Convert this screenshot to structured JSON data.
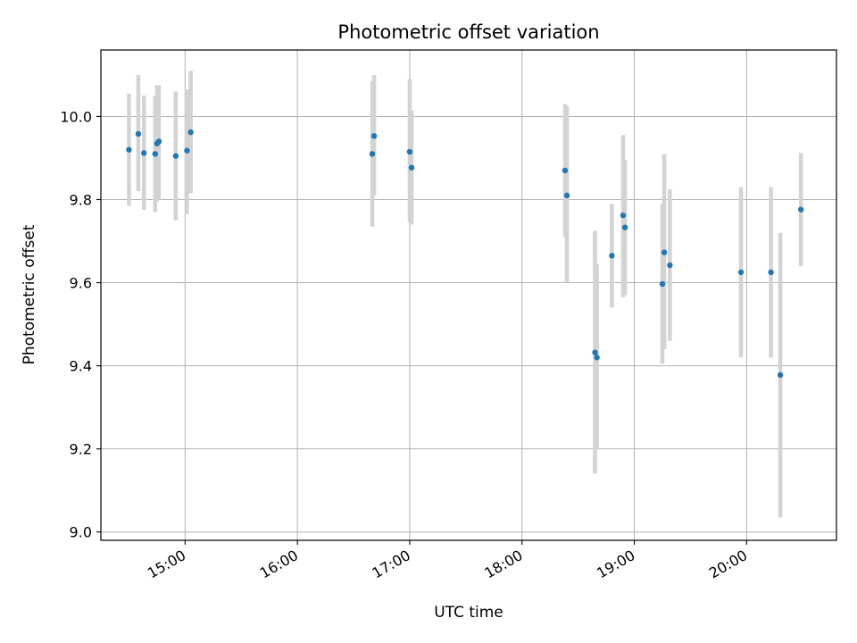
{
  "chart_data": {
    "type": "scatter",
    "title": "Photometric offset variation",
    "xlabel": "UTC time",
    "ylabel": "Photometric offset",
    "x_axis": "time",
    "xlim": [
      "14:15",
      "20:48"
    ],
    "ylim": [
      8.98,
      10.16
    ],
    "x_ticks": [
      "15:00",
      "16:00",
      "17:00",
      "18:00",
      "19:00",
      "20:00"
    ],
    "y_ticks": [
      9.0,
      9.2,
      9.4,
      9.6,
      9.8,
      10.0
    ],
    "grid": true,
    "marker_color": "#1f77b4",
    "errorbar_color": "#d3d3d3",
    "points": [
      {
        "t": "14:30",
        "y": 9.92,
        "lo": 9.785,
        "hi": 10.055
      },
      {
        "t": "14:35",
        "y": 9.958,
        "lo": 9.82,
        "hi": 10.1
      },
      {
        "t": "14:38",
        "y": 9.912,
        "lo": 9.775,
        "hi": 10.05
      },
      {
        "t": "14:44",
        "y": 9.91,
        "lo": 9.77,
        "hi": 10.05
      },
      {
        "t": "14:45",
        "y": 9.935,
        "lo": 9.795,
        "hi": 10.075
      },
      {
        "t": "14:46",
        "y": 9.94,
        "lo": 9.8,
        "hi": 10.075
      },
      {
        "t": "14:55",
        "y": 9.905,
        "lo": 9.75,
        "hi": 10.06
      },
      {
        "t": "15:01",
        "y": 9.918,
        "lo": 9.765,
        "hi": 10.065
      },
      {
        "t": "15:03",
        "y": 9.962,
        "lo": 9.815,
        "hi": 10.11
      },
      {
        "t": "16:40",
        "y": 9.91,
        "lo": 9.735,
        "hi": 10.085
      },
      {
        "t": "16:41",
        "y": 9.953,
        "lo": 9.81,
        "hi": 10.1
      },
      {
        "t": "17:00",
        "y": 9.915,
        "lo": 9.745,
        "hi": 10.09
      },
      {
        "t": "17:01",
        "y": 9.877,
        "lo": 9.74,
        "hi": 10.015
      },
      {
        "t": "18:23",
        "y": 9.87,
        "lo": 9.71,
        "hi": 10.03
      },
      {
        "t": "18:24",
        "y": 9.81,
        "lo": 9.6,
        "hi": 10.025
      },
      {
        "t": "18:39",
        "y": 9.432,
        "lo": 9.14,
        "hi": 9.725
      },
      {
        "t": "18:40",
        "y": 9.42,
        "lo": 9.2,
        "hi": 9.645
      },
      {
        "t": "18:48",
        "y": 9.665,
        "lo": 9.54,
        "hi": 9.79
      },
      {
        "t": "18:54",
        "y": 9.762,
        "lo": 9.565,
        "hi": 9.955
      },
      {
        "t": "18:55",
        "y": 9.733,
        "lo": 9.57,
        "hi": 9.895
      },
      {
        "t": "19:15",
        "y": 9.597,
        "lo": 9.405,
        "hi": 9.79
      },
      {
        "t": "19:16",
        "y": 9.673,
        "lo": 9.44,
        "hi": 9.91
      },
      {
        "t": "19:19",
        "y": 9.642,
        "lo": 9.46,
        "hi": 9.825
      },
      {
        "t": "19:57",
        "y": 9.625,
        "lo": 9.42,
        "hi": 9.83
      },
      {
        "t": "20:13",
        "y": 9.625,
        "lo": 9.42,
        "hi": 9.83
      },
      {
        "t": "20:18",
        "y": 9.378,
        "lo": 9.035,
        "hi": 9.72
      },
      {
        "t": "20:29",
        "y": 9.776,
        "lo": 9.64,
        "hi": 9.912
      }
    ]
  }
}
